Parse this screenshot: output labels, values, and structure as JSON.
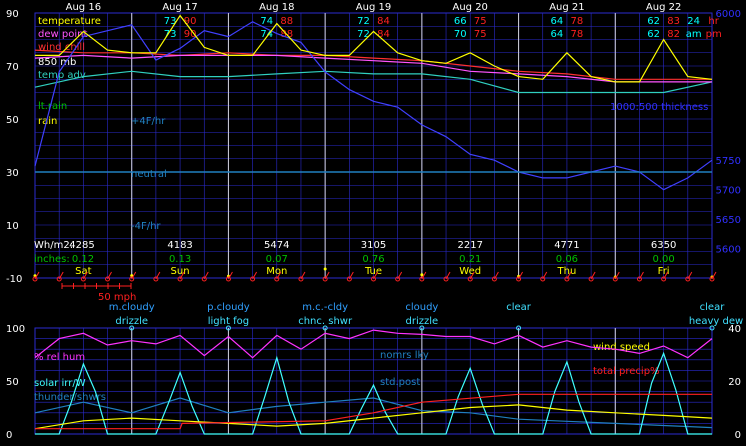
{
  "colors": {
    "grid": "#2b2bd0",
    "axis_text": "#ffffff",
    "temperature": "#ffff00",
    "dewpoint": "#ff55ff",
    "windchill": "#ff3030",
    "t850": "#4040ff",
    "tempadv": "#30d0c0",
    "rain": "#ffff00",
    "ltrain": "#00c000",
    "thickness": "#3030ff",
    "neutral": "#2080c0",
    "hum": "#ff33ff",
    "solar": "#40ffff",
    "thunder": "#2080c0",
    "wind": "#ffff00",
    "precip": "#ff2020",
    "cloudy": "#30a0ff",
    "wx": "#40e0ff",
    "day": "#ffff00",
    "hi_left": "#00ffff",
    "hi_right": "#ff2020",
    "windbarb": "#ff2020"
  },
  "chart_data": [
    {
      "type": "line",
      "panel": "top",
      "ylim": [
        -10,
        90
      ],
      "yticks": [
        "90",
        "70",
        "50",
        "30",
        "10",
        "-10"
      ],
      "y2lim": [
        5550,
        6000
      ],
      "y2ticks": [
        "6000",
        "5750",
        "5700",
        "5650",
        "5600"
      ],
      "dates": [
        "Aug 16",
        "Aug 17",
        "Aug 18",
        "Aug 19",
        "Aug 20",
        "Aug 21",
        "Aug 22"
      ],
      "days": [
        "Sat",
        "Sun",
        "Mon",
        "Tue",
        "Wed",
        "Thu",
        "Fri"
      ],
      "highs": [
        [
          "",
          "",
          "73",
          "90",
          "74",
          "88",
          "72",
          "84",
          "66",
          "75",
          "64",
          "78",
          "62",
          "83",
          "24",
          "hr"
        ],
        [
          "",
          "",
          "73",
          "90",
          "74",
          "88",
          "72",
          "84",
          "70",
          "75",
          "64",
          "78",
          "62",
          "82",
          "am",
          "pm"
        ]
      ],
      "left_labels": {
        "temperature": "temperature",
        "dewpoint": "dew point",
        "windchill": "wind chill",
        "t850": "850 mb",
        "tempadv": "temp adv",
        "ltrain": "lt.rain",
        "rain": "rain"
      },
      "annotations": {
        "plus4": "+4F/hr",
        "neutral": "neutral",
        "minus4": "-4F/hr",
        "thickness": "1000:500 thickness"
      },
      "solar_wh": {
        "label": "Wh/m2:",
        "values": [
          "4285",
          "4183",
          "5474",
          "3105",
          "2217",
          "4771",
          "6350"
        ]
      },
      "rain_inches": {
        "label": "inches:",
        "values": [
          "0.12",
          "0.13",
          "0.07",
          "0.76",
          "0.21",
          "0.06",
          "0.00"
        ]
      },
      "wind_scale": "50 mph",
      "series": [
        {
          "name": "temperature",
          "x": [
            0,
            6,
            12,
            18,
            24,
            30,
            36,
            42,
            48,
            54,
            60,
            66,
            72,
            78,
            84,
            90,
            96,
            102,
            108,
            114,
            120,
            126,
            132,
            138,
            144,
            150,
            156,
            162,
            168
          ],
          "values": [
            74,
            74,
            83,
            76,
            75,
            75,
            89,
            77,
            74,
            74,
            86,
            76,
            74,
            74,
            83,
            75,
            72,
            71,
            75,
            70,
            66,
            65,
            75,
            66,
            64,
            64,
            80,
            66,
            65
          ]
        },
        {
          "name": "dew point",
          "x": [
            0,
            12,
            24,
            36,
            48,
            60,
            72,
            84,
            96,
            108,
            120,
            132,
            144,
            156,
            168
          ],
          "values": [
            73,
            74,
            73,
            74,
            74,
            74,
            73,
            72,
            71,
            68,
            67,
            66,
            64,
            64,
            64
          ]
        },
        {
          "name": "wind chill",
          "x": [
            0,
            12,
            24,
            36,
            48,
            60,
            72,
            84,
            96,
            108,
            120,
            132,
            144,
            156,
            168
          ],
          "values": [
            76,
            75,
            75,
            74,
            75,
            74,
            74,
            73,
            72,
            70,
            68,
            67,
            65,
            65,
            65
          ]
        },
        {
          "name": "850 mb",
          "x": [
            0,
            6,
            12,
            18,
            24,
            30,
            36,
            42,
            48,
            54,
            60,
            66,
            72,
            78,
            84,
            90,
            96,
            102,
            108,
            114,
            120,
            126,
            132,
            138,
            144,
            150,
            156,
            162,
            168
          ],
          "values": [
            5740,
            5900,
            5960,
            5970,
            5980,
            5920,
            5940,
            5970,
            5960,
            5985,
            5965,
            5950,
            5900,
            5870,
            5850,
            5840,
            5810,
            5790,
            5760,
            5750,
            5730,
            5720,
            5720,
            5730,
            5740,
            5730,
            5700,
            5720,
            5750
          ]
        },
        {
          "name": "temp adv",
          "x": [
            0,
            12,
            24,
            36,
            48,
            60,
            72,
            84,
            96,
            108,
            120,
            132,
            144,
            156,
            168
          ],
          "values": [
            62,
            66,
            68,
            66,
            66,
            67,
            68,
            67,
            67,
            65,
            60,
            60,
            60,
            60,
            64
          ]
        },
        {
          "name": "rain",
          "x": [
            0,
            24,
            48,
            72,
            96,
            120,
            144,
            168
          ],
          "values": [
            0.12,
            0.13,
            0.07,
            0.76,
            0.21,
            0.06,
            0.0,
            0.0
          ]
        },
        {
          "name": "neutral",
          "x": [
            0,
            168
          ],
          "values": [
            30,
            30
          ]
        }
      ]
    },
    {
      "type": "line",
      "panel": "bottom",
      "ylim": [
        0,
        100
      ],
      "yticks": [
        "100",
        "50",
        "0"
      ],
      "y2lim": [
        0,
        40
      ],
      "y2ticks": [
        "40",
        "20",
        "0"
      ],
      "sky": [
        {
          "label": "m.cloudy",
          "x": 12
        },
        {
          "label": "p.cloudy",
          "x": 36
        },
        {
          "label": "m.c.-cldy",
          "x": 60
        },
        {
          "label": "cloudy",
          "x": 84
        },
        {
          "label": "clear",
          "x": 108
        },
        {
          "label": "clear",
          "x": 132
        }
      ],
      "wx": [
        {
          "label": "drizzle",
          "x": 12
        },
        {
          "label": "light fog",
          "x": 36
        },
        {
          "label": "chnc. shwr",
          "x": 60
        },
        {
          "label": "drizzle",
          "x": 84
        },
        {
          "label": "heavy dew",
          "x": 132
        }
      ],
      "left_labels": {
        "hum": "% rel hum",
        "solar": "solar irr/W",
        "thunder": "thunder/shwrs"
      },
      "annotations": {
        "norm_sky": "nomrs lky",
        "stdpost": "std.post",
        "wind": "wind speed",
        "precip": "total precip%"
      },
      "series": [
        {
          "name": "% rel hum",
          "x": [
            0,
            6,
            12,
            18,
            24,
            30,
            36,
            42,
            48,
            54,
            60,
            66,
            72,
            78,
            84,
            90,
            96,
            102,
            108,
            114,
            120,
            126,
            132,
            138,
            144,
            150,
            156,
            162,
            168
          ],
          "values": [
            72,
            90,
            95,
            84,
            88,
            85,
            93,
            74,
            92,
            72,
            93,
            80,
            95,
            90,
            98,
            95,
            94,
            92,
            92,
            85,
            93,
            82,
            88,
            82,
            80,
            76,
            83,
            72,
            90
          ]
        },
        {
          "name": "solar irr/W",
          "x": [
            0,
            6,
            9,
            12,
            15,
            18,
            24,
            30,
            33,
            36,
            39,
            42,
            48,
            54,
            57,
            60,
            63,
            66,
            72,
            78,
            81,
            84,
            87,
            90,
            96,
            102,
            105,
            108,
            111,
            114,
            120,
            126,
            129,
            132,
            135,
            138,
            144,
            150,
            153,
            156,
            159,
            162,
            168
          ],
          "values": [
            0,
            0,
            30,
            66,
            40,
            0,
            0,
            0,
            28,
            58,
            26,
            0,
            0,
            0,
            35,
            72,
            30,
            0,
            0,
            0,
            24,
            46,
            20,
            0,
            0,
            0,
            35,
            62,
            28,
            0,
            0,
            0,
            40,
            68,
            30,
            0,
            0,
            0,
            48,
            76,
            42,
            0,
            0
          ]
        },
        {
          "name": "thunder/shwrs",
          "x": [
            0,
            12,
            24,
            36,
            48,
            60,
            72,
            84,
            96,
            108,
            120,
            132,
            144,
            156,
            168
          ],
          "values": [
            20,
            30,
            20,
            34,
            20,
            26,
            30,
            34,
            22,
            20,
            14,
            12,
            10,
            8,
            6
          ]
        },
        {
          "name": "wind speed",
          "x": [
            0,
            12,
            24,
            36,
            48,
            60,
            72,
            84,
            96,
            108,
            120,
            132,
            144,
            156,
            168
          ],
          "values": [
            2,
            5,
            6,
            5,
            4,
            3,
            4,
            6,
            8,
            10,
            11,
            9,
            8,
            7,
            6
          ]
        },
        {
          "name": "total precip%",
          "x": [
            0,
            36,
            36.5,
            72,
            84,
            96,
            120,
            144,
            168
          ],
          "values": [
            2,
            2,
            4,
            5,
            8,
            12,
            15,
            15,
            15
          ]
        }
      ]
    }
  ]
}
